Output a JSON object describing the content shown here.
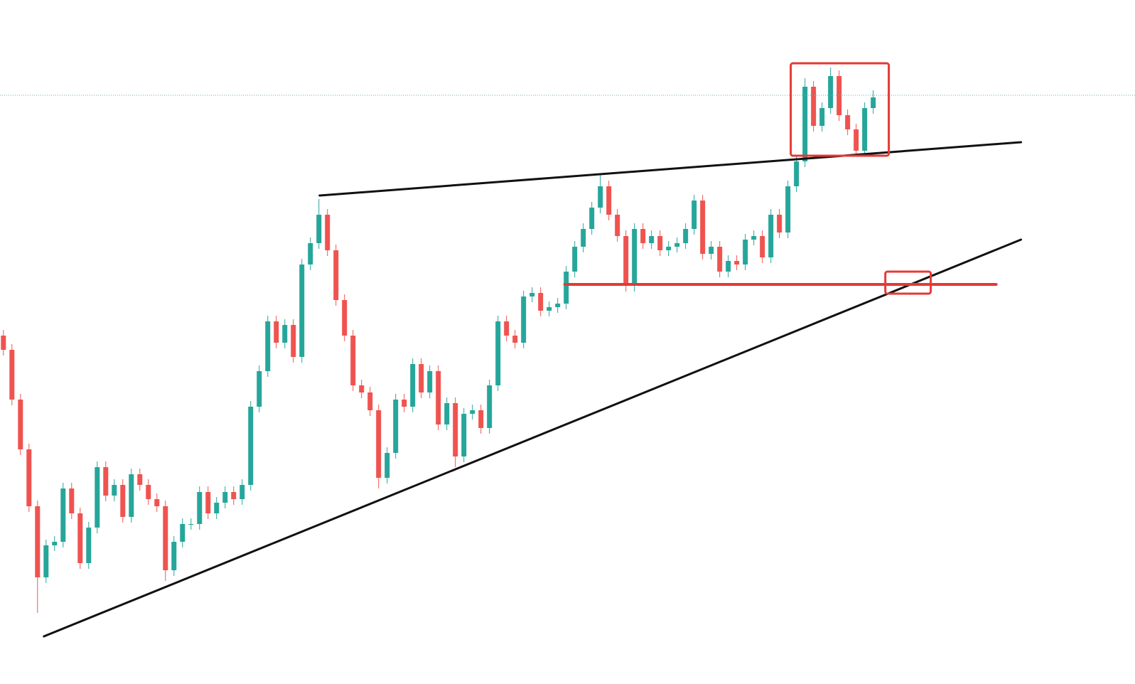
{
  "chart_data": {
    "type": "candlestick",
    "up_color": "#26a69a",
    "down_color": "#ef5350",
    "xlim": [
      -0.4,
      132.7
    ],
    "ylim": [
      0,
      962
    ],
    "open": [
      490,
      470,
      400,
      330,
      250,
      150,
      195,
      200,
      275,
      240,
      170,
      220,
      305,
      265,
      280,
      235,
      295,
      280,
      260,
      250,
      160,
      200,
      225,
      225,
      270,
      240,
      255,
      270,
      260,
      280,
      390,
      440,
      510,
      480,
      505,
      460,
      590,
      620,
      660,
      610,
      540,
      490,
      420,
      410,
      385,
      290,
      325,
      400,
      390,
      450,
      410,
      440,
      365,
      395,
      320,
      380,
      385,
      360,
      420,
      510,
      490,
      480,
      545,
      550,
      525,
      530,
      535,
      580,
      615,
      640,
      670,
      700,
      660,
      630,
      560,
      640,
      620,
      630,
      610,
      615,
      620,
      640,
      680,
      605,
      615,
      580,
      595,
      590,
      625,
      630,
      600,
      660,
      635,
      700,
      735,
      840,
      785,
      810,
      855,
      800,
      780,
      750,
      810
    ],
    "high": [
      498,
      478,
      408,
      338,
      258,
      203,
      208,
      283,
      283,
      248,
      228,
      313,
      313,
      288,
      288,
      303,
      303,
      288,
      268,
      258,
      208,
      233,
      233,
      278,
      278,
      263,
      278,
      278,
      288,
      398,
      448,
      518,
      518,
      513,
      513,
      598,
      628,
      682,
      668,
      618,
      548,
      498,
      428,
      418,
      393,
      333,
      408,
      408,
      458,
      458,
      448,
      448,
      403,
      403,
      388,
      393,
      393,
      428,
      518,
      518,
      498,
      553,
      558,
      558,
      538,
      543,
      588,
      623,
      648,
      678,
      717,
      708,
      668,
      638,
      648,
      648,
      638,
      638,
      623,
      628,
      648,
      688,
      688,
      623,
      623,
      603,
      603,
      633,
      638,
      638,
      668,
      668,
      708,
      743,
      852,
      848,
      818,
      867,
      863,
      808,
      788,
      818,
      835
    ],
    "low": [
      462,
      392,
      322,
      242,
      100,
      142,
      187,
      192,
      232,
      162,
      162,
      212,
      257,
      257,
      227,
      227,
      272,
      252,
      242,
      145,
      152,
      192,
      217,
      217,
      232,
      232,
      247,
      252,
      252,
      272,
      382,
      432,
      472,
      472,
      452,
      452,
      582,
      612,
      602,
      532,
      482,
      412,
      402,
      377,
      275,
      282,
      317,
      382,
      382,
      402,
      402,
      357,
      357,
      305,
      312,
      372,
      352,
      352,
      412,
      482,
      472,
      472,
      537,
      517,
      517,
      522,
      527,
      572,
      607,
      632,
      662,
      652,
      622,
      552,
      552,
      612,
      612,
      602,
      602,
      607,
      612,
      632,
      597,
      597,
      572,
      572,
      582,
      582,
      617,
      592,
      592,
      627,
      627,
      692,
      727,
      777,
      777,
      802,
      792,
      772,
      742,
      742,
      802
    ],
    "close": [
      470,
      400,
      330,
      250,
      150,
      195,
      200,
      275,
      240,
      170,
      220,
      305,
      265,
      280,
      235,
      295,
      280,
      260,
      250,
      160,
      200,
      225,
      225,
      270,
      240,
      255,
      270,
      260,
      280,
      390,
      440,
      510,
      480,
      505,
      460,
      590,
      620,
      660,
      610,
      540,
      490,
      420,
      410,
      385,
      290,
      325,
      400,
      390,
      450,
      410,
      440,
      365,
      395,
      320,
      380,
      385,
      360,
      420,
      510,
      490,
      480,
      545,
      550,
      525,
      530,
      535,
      580,
      615,
      640,
      670,
      700,
      660,
      630,
      560,
      640,
      620,
      630,
      610,
      615,
      620,
      640,
      680,
      605,
      615,
      580,
      595,
      590,
      625,
      630,
      600,
      660,
      635,
      700,
      735,
      840,
      785,
      810,
      855,
      800,
      780,
      750,
      810,
      825
    ],
    "lines": [
      {
        "x": [
          4.75,
          119.33
        ],
        "y": [
          67,
          625
        ],
        "color": "#111111",
        "width": 3
      },
      {
        "x": [
          37.08,
          119.33
        ],
        "y": [
          687,
          762
        ],
        "color": "#111111",
        "width": 3
      },
      {
        "x": [
          65.83,
          116.42
        ],
        "y": [
          562,
          562
        ],
        "color": "#e53935",
        "width": 4
      },
      {
        "x": [
          -0.4,
          132.7
        ],
        "y": [
          828,
          828
        ],
        "color": "#4db6ac",
        "width": 1,
        "style": "dotted"
      }
    ],
    "rectangles": [
      {
        "x": [
          92.33,
          103.83
        ],
        "y": [
          873,
          743
        ],
        "color": "#e53935"
      },
      {
        "x": [
          103.42,
          108.75
        ],
        "y": [
          580,
          549
        ],
        "color": "#e53935"
      }
    ]
  }
}
